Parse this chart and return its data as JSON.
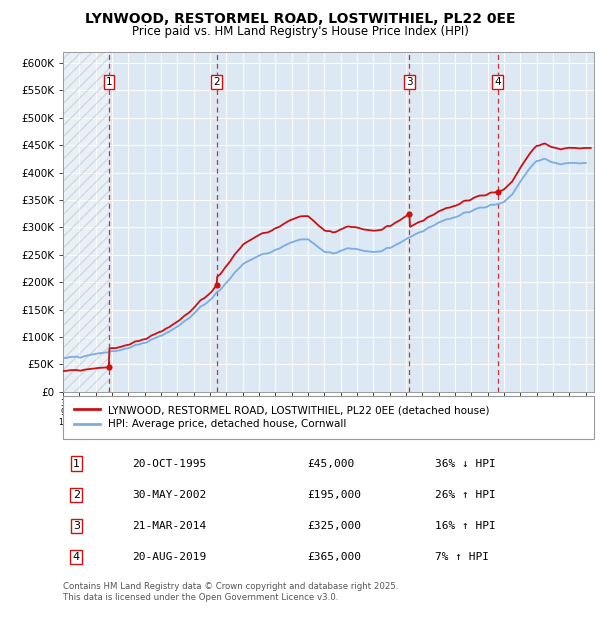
{
  "title": "LYNWOOD, RESTORMEL ROAD, LOSTWITHIEL, PL22 0EE",
  "subtitle": "Price paid vs. HM Land Registry's House Price Index (HPI)",
  "hpi_color": "#7aade0",
  "price_color": "#cc1111",
  "background_chart": "#dde8f5",
  "grid_color": "#ffffff",
  "legend_line1": "LYNWOOD, RESTORMEL ROAD, LOSTWITHIEL, PL22 0EE (detached house)",
  "legend_line2": "HPI: Average price, detached house, Cornwall",
  "footer": "Contains HM Land Registry data © Crown copyright and database right 2025.\nThis data is licensed under the Open Government Licence v3.0.",
  "transactions": [
    {
      "num": 1,
      "date": "20-OCT-1995",
      "price": 45000,
      "hpi_rel": "36% ↓ HPI",
      "x_year": 1995.8
    },
    {
      "num": 2,
      "date": "30-MAY-2002",
      "price": 195000,
      "hpi_rel": "26% ↑ HPI",
      "x_year": 2002.4
    },
    {
      "num": 3,
      "date": "21-MAR-2014",
      "price": 325000,
      "hpi_rel": "16% ↑ HPI",
      "x_year": 2014.2
    },
    {
      "num": 4,
      "date": "20-AUG-2019",
      "price": 365000,
      "hpi_rel": "7% ↑ HPI",
      "x_year": 2019.6
    }
  ],
  "ylim": [
    0,
    620000
  ],
  "xlim_start": 1993,
  "xlim_end": 2025.5,
  "yticks": [
    0,
    50000,
    100000,
    150000,
    200000,
    250000,
    300000,
    350000,
    400000,
    450000,
    500000,
    550000,
    600000
  ],
  "ytick_labels": [
    "£0",
    "£50K",
    "£100K",
    "£150K",
    "£200K",
    "£250K",
    "£300K",
    "£350K",
    "£400K",
    "£450K",
    "£500K",
    "£550K",
    "£600K"
  ],
  "hpi_data_years": [
    1993,
    1993.5,
    1994,
    1994.5,
    1995,
    1995.5,
    1996,
    1996.5,
    1997,
    1997.5,
    1998,
    1998.5,
    1999,
    1999.5,
    2000,
    2000.5,
    2001,
    2001.5,
    2002,
    2002.5,
    2003,
    2003.5,
    2004,
    2004.5,
    2005,
    2005.5,
    2006,
    2006.5,
    2007,
    2007.5,
    2008,
    2008.5,
    2009,
    2009.5,
    2010,
    2010.5,
    2011,
    2011.5,
    2012,
    2012.5,
    2013,
    2013.5,
    2014,
    2014.5,
    2015,
    2015.5,
    2016,
    2016.5,
    2017,
    2017.5,
    2018,
    2018.5,
    2019,
    2019.5,
    2020,
    2020.5,
    2021,
    2021.5,
    2022,
    2022.5,
    2023,
    2023.5,
    2024,
    2024.5,
    2025
  ],
  "hpi_data_vals": [
    62000,
    63000,
    65000,
    67000,
    69000,
    71000,
    74000,
    77000,
    81000,
    85000,
    90000,
    96000,
    103000,
    111000,
    120000,
    131000,
    143000,
    157000,
    168000,
    183000,
    200000,
    218000,
    232000,
    242000,
    248000,
    252000,
    258000,
    265000,
    272000,
    278000,
    280000,
    267000,
    255000,
    252000,
    258000,
    262000,
    260000,
    258000,
    255000,
    257000,
    262000,
    270000,
    278000,
    286000,
    294000,
    302000,
    308000,
    315000,
    320000,
    326000,
    330000,
    335000,
    338000,
    342000,
    346000,
    360000,
    385000,
    405000,
    420000,
    425000,
    420000,
    415000,
    418000,
    416000,
    415000
  ]
}
